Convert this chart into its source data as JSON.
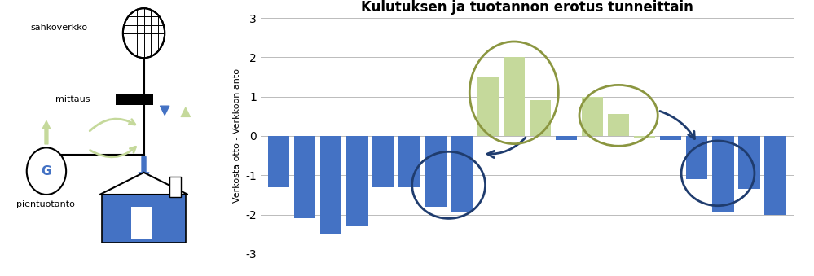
{
  "title": "Kulutuksen ja tuotannon erotus tunneittain",
  "ylabel": "Verkosta otto - Verkkoon anto",
  "ylim": [
    -3,
    3
  ],
  "yticks": [
    -3,
    -2,
    -1,
    0,
    1,
    2,
    3
  ],
  "bar_values": [
    -1.3,
    -2.1,
    -2.5,
    -2.3,
    -1.3,
    -1.3,
    -1.8,
    -1.95,
    1.5,
    2.0,
    0.9,
    -0.1,
    1.0,
    0.55,
    -0.05,
    -0.1,
    -1.1,
    -1.95,
    -1.35,
    -2.0
  ],
  "bar_colors_indices": [
    0,
    0,
    0,
    0,
    0,
    0,
    0,
    0,
    1,
    1,
    1,
    0,
    1,
    1,
    1,
    0,
    0,
    0,
    0,
    0
  ],
  "blue_color": "#4472C4",
  "green_color": "#C5D99B",
  "title_fontsize": 12,
  "ylabel_fontsize": 8,
  "green_ellipse_color": "#8B9640",
  "blue_ellipse_color": "#1F3C6E",
  "grid_color": "#BBBBBB"
}
